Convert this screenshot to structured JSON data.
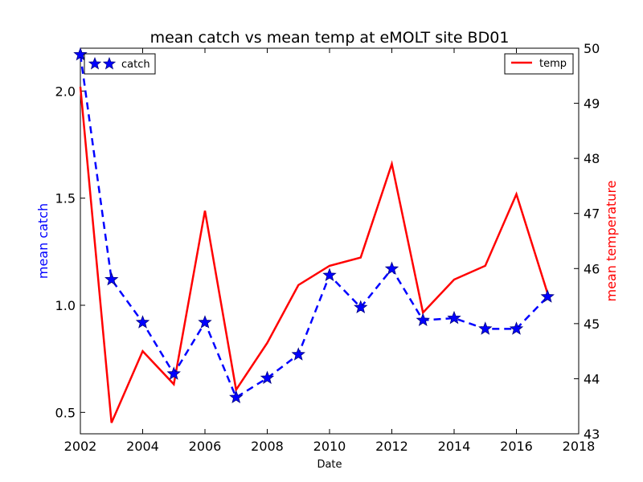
{
  "chart_data": {
    "type": "line",
    "title": "mean catch vs mean temp at eMOLT site BD01",
    "xlabel": "Date",
    "ylabel_left": "mean catch",
    "ylabel_right": "mean temperature",
    "xlim": [
      2002,
      2018
    ],
    "ylim_left": [
      0.4,
      2.2
    ],
    "ylim_right": [
      43,
      50
    ],
    "x_ticks": [
      "2002",
      "2004",
      "2006",
      "2008",
      "2010",
      "2012",
      "2014",
      "2016",
      "2018"
    ],
    "y_left_ticks": [
      "0.5",
      "1.0",
      "1.5",
      "2.0"
    ],
    "y_right_ticks": [
      "43",
      "44",
      "45",
      "46",
      "47",
      "48",
      "49",
      "50"
    ],
    "grid": false,
    "series": [
      {
        "name": "catch",
        "axis": "left",
        "color": "#0000ff",
        "linestyle": "dashed",
        "marker": "star",
        "legend_position": "top-left",
        "x": [
          2002,
          2003,
          2004,
          2005,
          2006,
          2007,
          2008,
          2009,
          2010,
          2011,
          2012,
          2013,
          2014,
          2015,
          2016,
          2017
        ],
        "y": [
          2.17,
          1.12,
          0.92,
          0.68,
          0.92,
          0.57,
          0.66,
          0.77,
          1.14,
          0.99,
          1.17,
          0.93,
          0.94,
          0.89,
          0.89,
          1.04
        ]
      },
      {
        "name": "temp",
        "axis": "right",
        "color": "#ff0000",
        "linestyle": "solid",
        "marker": "none",
        "legend_position": "top-right",
        "x": [
          2002,
          2003,
          2004,
          2005,
          2006,
          2007,
          2008,
          2009,
          2010,
          2011,
          2012,
          2013,
          2014,
          2015,
          2016,
          2017
        ],
        "y": [
          49.3,
          43.2,
          44.5,
          43.9,
          47.05,
          43.8,
          44.65,
          45.7,
          46.05,
          46.2,
          47.9,
          45.2,
          45.8,
          46.05,
          47.35,
          45.55
        ]
      }
    ]
  }
}
